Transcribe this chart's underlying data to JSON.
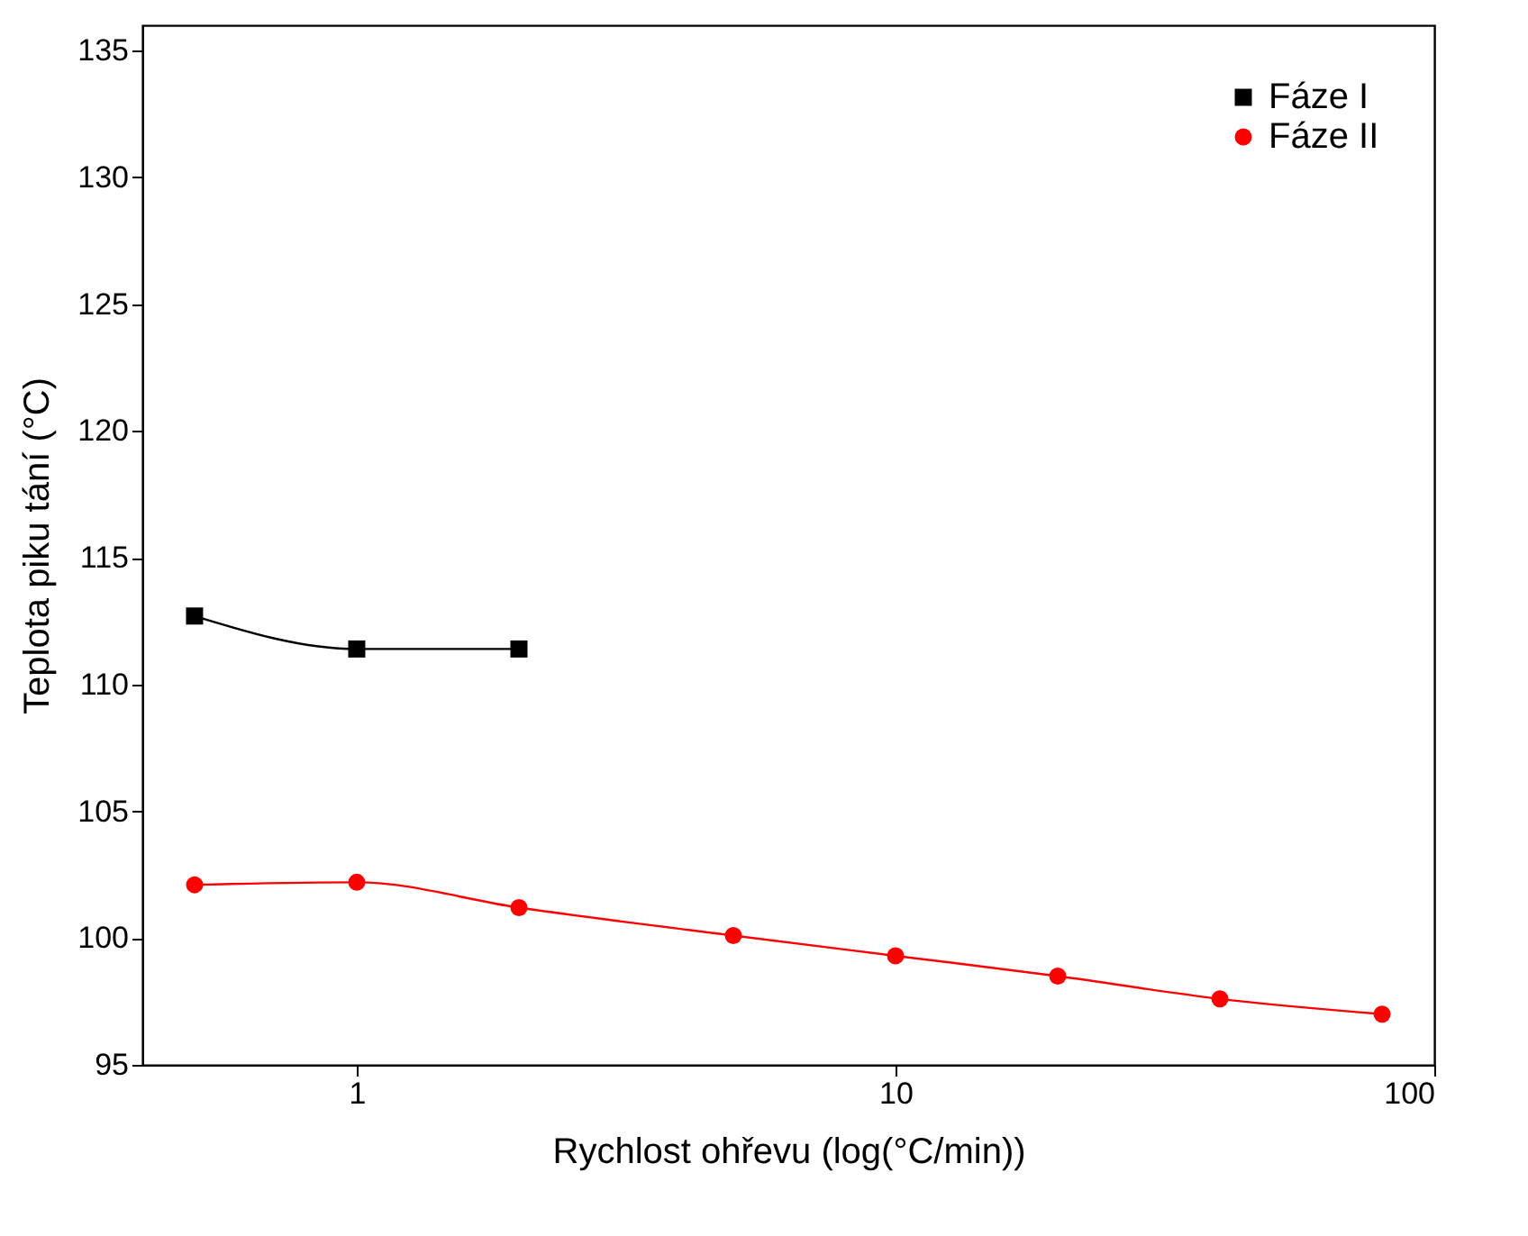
{
  "chart_data": {
    "type": "line",
    "xlabel": "Rychlost ohřevu (log(°C/min))",
    "ylabel": "Teplota piku tání (°C)",
    "log": "x",
    "xlim": [
      0.4,
      100
    ],
    "xticks": [
      1,
      10,
      100
    ],
    "ylim": [
      95,
      136
    ],
    "yticks": [
      95,
      100,
      105,
      110,
      115,
      120,
      125,
      130,
      135
    ],
    "legend": "top right",
    "grid": false,
    "series": [
      {
        "name": "Fáze I",
        "color": "#000000",
        "marker": "square",
        "line_style": "solid",
        "x": [
          0.5,
          1,
          2
        ],
        "values": [
          112.7,
          111.4,
          111.4
        ]
      },
      {
        "name": "Fáze II",
        "color": "#ff0000",
        "marker": "circle",
        "line_style": "solid",
        "x": [
          0.5,
          1,
          2,
          5,
          10,
          20,
          40,
          80
        ],
        "values": [
          102.1,
          102.2,
          101.2,
          100.1,
          99.3,
          98.5,
          97.6,
          97.0
        ]
      }
    ]
  }
}
